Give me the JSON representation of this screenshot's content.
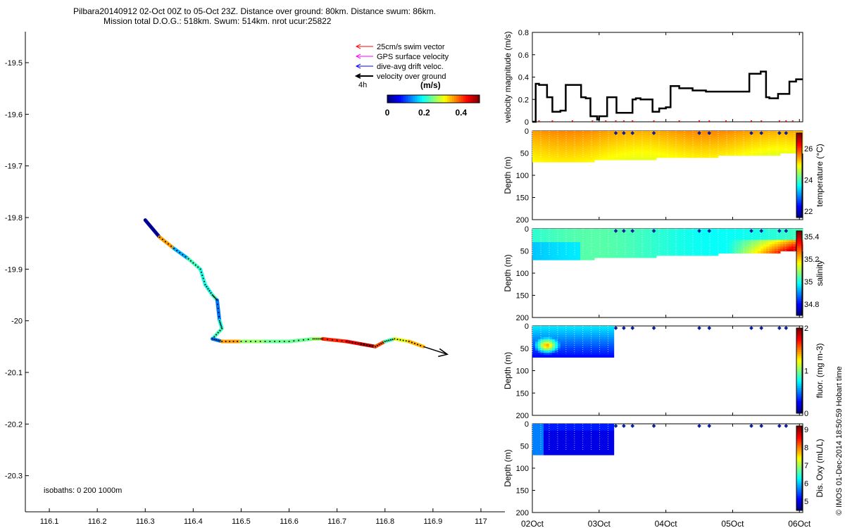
{
  "header": {
    "line1": "Pilbara20140912 02-Oct 00Z to 05-Oct 23Z. Distance over ground: 80km. Distance swum: 86km.",
    "line2": "Mission total D.O.G.: 518km. Swum: 514km. nrot ucur:25822"
  },
  "colors": {
    "swim_vector": "#ff0000",
    "gps_velocity": "#ff00ff",
    "drift_velocity": "#0000ff",
    "velocity_over_ground": "#000000"
  },
  "chart_data": [
    {
      "type": "line",
      "name": "glider-track-map",
      "legend": [
        {
          "label": "25cm/s swim vector",
          "color": "#ff0000"
        },
        {
          "label": "GPS surface velocity",
          "color": "#ff00ff"
        },
        {
          "label": "dive-avg drift veloc.",
          "color": "#0000ff"
        },
        {
          "label": "velocity over ground",
          "color": "#000000"
        }
      ],
      "time_label": "4h",
      "colorbar": {
        "label": "(m/s)",
        "ticks": [
          "0",
          "0.2",
          "0.4"
        ],
        "range": [
          0,
          0.5
        ]
      },
      "xlim": [
        116.05,
        117.05
      ],
      "ylim": [
        -20.37,
        -19.44
      ],
      "xticks": [
        116.1,
        116.2,
        116.3,
        116.4,
        116.5,
        116.6,
        116.7,
        116.8,
        116.9,
        117
      ],
      "xticklabels": [
        "116.1",
        "116.2",
        "116.3",
        "116.4",
        "116.5",
        "116.6",
        "116.7",
        "116.8",
        "116.9",
        "117"
      ],
      "yticks": [
        -19.5,
        -19.6,
        -19.7,
        -19.8,
        -19.9,
        -20.0,
        -20.1,
        -20.2,
        -20.3
      ],
      "yticklabels": [
        "-19.5",
        "-19.6",
        "-19.7",
        "-19.8",
        "-19.9",
        "-20",
        "-20.1",
        "-20.2",
        "-20.3"
      ],
      "track": [
        [
          116.3,
          -19.805,
          0.02
        ],
        [
          116.33,
          -19.838,
          0.36
        ],
        [
          116.36,
          -19.86,
          0.15
        ],
        [
          116.39,
          -19.88,
          0.22
        ],
        [
          116.415,
          -19.9,
          0.2
        ],
        [
          116.425,
          -19.93,
          0.2
        ],
        [
          116.44,
          -19.95,
          0.22
        ],
        [
          116.45,
          -19.96,
          0.12
        ],
        [
          116.455,
          -20.0,
          0.2
        ],
        [
          116.46,
          -20.015,
          0.22
        ],
        [
          116.44,
          -20.035,
          0.12
        ],
        [
          116.46,
          -20.04,
          0.36
        ],
        [
          116.5,
          -20.04,
          0.26
        ],
        [
          116.55,
          -20.04,
          0.24
        ],
        [
          116.6,
          -20.04,
          0.24
        ],
        [
          116.65,
          -20.035,
          0.27
        ],
        [
          116.67,
          -20.035,
          0.42
        ],
        [
          116.72,
          -20.04,
          0.45
        ],
        [
          116.75,
          -20.045,
          0.48
        ],
        [
          116.78,
          -20.05,
          0.4
        ],
        [
          116.8,
          -20.04,
          0.22
        ],
        [
          116.82,
          -20.035,
          0.3
        ],
        [
          116.85,
          -20.04,
          0.35
        ],
        [
          116.88,
          -20.05,
          0.32
        ]
      ],
      "velocity_arrow": {
        "from": [
          116.88,
          -20.05
        ],
        "to": [
          116.93,
          -20.065
        ]
      },
      "isobaths_label": "isobaths: 0    200  1000m"
    },
    {
      "type": "line",
      "name": "velocity-magnitude",
      "ylabel": "velocity magnitude (m/s)",
      "ylim": [
        0,
        0.8
      ],
      "yticklabels": [
        "0",
        "0.2",
        "0.4",
        "0.6",
        "0.8"
      ],
      "x_day": [
        0,
        0.05,
        0.1,
        0.22,
        0.3,
        0.42,
        0.5,
        0.73,
        0.8,
        0.87,
        0.97,
        1.0,
        1.12,
        1.26,
        1.5,
        1.55,
        1.62,
        1.8,
        1.9,
        2.0,
        2.07,
        2.2,
        2.4,
        2.6,
        2.75,
        2.9,
        3.1,
        3.25,
        3.42,
        3.5,
        3.55,
        3.68,
        3.75,
        3.85,
        3.95,
        4.05
      ],
      "y": [
        0,
        0.34,
        0.33,
        0.22,
        0.09,
        0.1,
        0.33,
        0.22,
        0.21,
        0.05,
        0.02,
        0.05,
        0.22,
        0.08,
        0.2,
        0.21,
        0.2,
        0.09,
        0.12,
        0.13,
        0.32,
        0.3,
        0.28,
        0.27,
        0.27,
        0.27,
        0.27,
        0.43,
        0.45,
        0.22,
        0.21,
        0.25,
        0.25,
        0.36,
        0.38,
        0.38
      ]
    },
    {
      "type": "heatmap",
      "name": "temperature-section",
      "ylabel": "Depth (m)",
      "cbar_label": "temperature (°C)",
      "cbar_ticks": [
        "22",
        "24",
        "26"
      ],
      "clim": [
        21.6,
        27
      ],
      "depth_max": 200,
      "depth_ticks": [
        0,
        50,
        100,
        150,
        200
      ],
      "section_extent_days": [
        0,
        4.05
      ],
      "bottom_depth": [
        70,
        65,
        58,
        52,
        48
      ]
    },
    {
      "type": "heatmap",
      "name": "salinity-section",
      "ylabel": "Depth (m)",
      "cbar_label": "salinity",
      "cbar_ticks": [
        "34.8",
        "35",
        "35.2",
        "35.4"
      ],
      "clim": [
        34.7,
        35.45
      ],
      "depth_max": 200,
      "depth_ticks": [
        0,
        50,
        100,
        150,
        200
      ]
    },
    {
      "type": "heatmap",
      "name": "fluorescence-section",
      "ylabel": "Depth (m)",
      "cbar_label": "fluor. (mg m-3)",
      "cbar_ticks": [
        "0",
        "1",
        "2"
      ],
      "clim": [
        0,
        2
      ],
      "depth_max": 200,
      "depth_ticks": [
        0,
        50,
        100,
        150,
        200
      ],
      "data_end_day": 1.22
    },
    {
      "type": "heatmap",
      "name": "oxygen-section",
      "ylabel": "Depth (m)",
      "cbar_label": "Dis. Oxy (mL/L)",
      "cbar_ticks": [
        "5",
        "6",
        "7",
        "8",
        "9"
      ],
      "clim": [
        4.5,
        9.2
      ],
      "depth_max": 200,
      "depth_ticks": [
        0,
        50,
        100,
        150,
        200
      ],
      "data_end_day": 1.22
    }
  ],
  "shared_x": {
    "labels": [
      "02Oct",
      "03Oct",
      "04Oct",
      "05Oct",
      "06Oct"
    ],
    "range_days": [
      0,
      4.05
    ]
  },
  "surface_markers_days": [
    1.25,
    1.37,
    1.5,
    1.82,
    2.5,
    2.65,
    3.28,
    3.43,
    3.7,
    3.8
  ],
  "side_text": "© IMOS 01-Dec-2014 18:50:59 Hobart time"
}
